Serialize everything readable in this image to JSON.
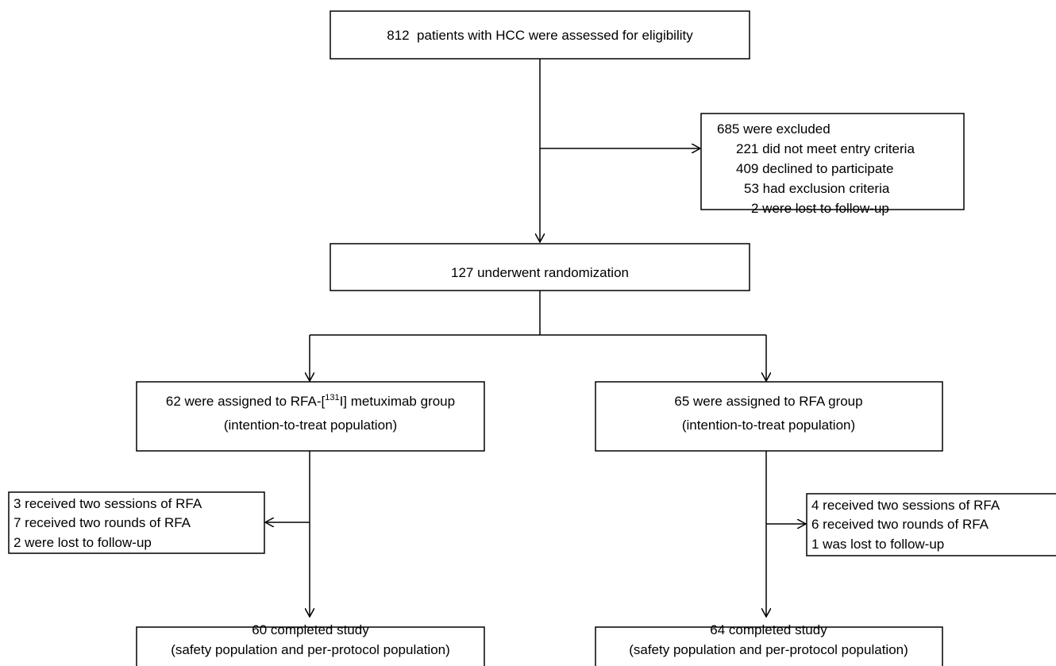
{
  "assessment": "812  patients with HCC were assessed for eligibility",
  "exclusion": {
    "title": "685 were excluded",
    "reasons": [
      "221 did not meet entry criteria",
      "409 declined to participate",
      "53 had exclusion criteria",
      "2 were lost to follow-up"
    ]
  },
  "randomization": "127 underwent randomization",
  "arms": [
    {
      "assigned": {
        "before": "62 were assigned to RFA-[",
        "superscript": "131",
        "after": "I] metuximab group"
      },
      "population": "(intention-to-treat population)",
      "events": [
        "3 received two sessions of RFA",
        "7 received two rounds of RFA",
        "2 were lost to follow-up"
      ],
      "completed": "60 completed study",
      "completed_population": "(safety population and per-protocol population)"
    },
    {
      "assigned": {
        "before": "65 were assigned to RFA group"
      },
      "population": "(intention-to-treat population)",
      "events": [
        "4 received two sessions of RFA",
        "6 received two rounds of RFA",
        "1 was lost to follow-up"
      ],
      "completed": "64 completed study",
      "completed_population": "(safety population and per-protocol population)"
    }
  ]
}
